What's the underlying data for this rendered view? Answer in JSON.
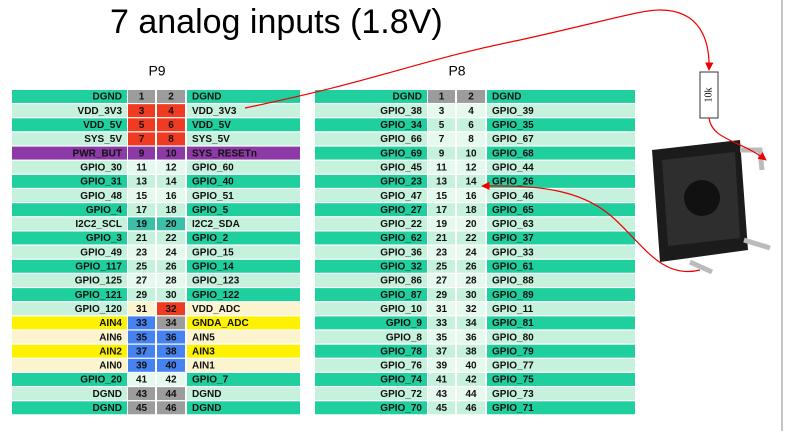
{
  "title": "7 analog inputs (1.8V)",
  "resistor": "10k",
  "p9": {
    "name": "P9",
    "rows": [
      {
        "left": "DGND",
        "pin_left": 1,
        "pin_right": 2,
        "right": "DGND",
        "colors": [
          "#20cf9e",
          "#9c9c9c",
          "#9c9c9c",
          "#20cf9e"
        ]
      },
      {
        "left": "VDD_3V3",
        "pin_left": 3,
        "pin_right": 4,
        "right": "VDD_3V3",
        "colors": [
          "#c6f1dc",
          "#ee3b22",
          "#ee3b22",
          "#c6f1dc"
        ]
      },
      {
        "left": "VDD_5V",
        "pin_left": 5,
        "pin_right": 6,
        "right": "VDD_5V",
        "colors": [
          "#20cf9e",
          "#ee3b22",
          "#ee3b22",
          "#20cf9e"
        ]
      },
      {
        "left": "SYS_5V",
        "pin_left": 7,
        "pin_right": 8,
        "right": "SYS_5V",
        "colors": [
          "#c6f1dc",
          "#ee3b22",
          "#ee3b22",
          "#c6f1dc"
        ]
      },
      {
        "left": "PWR_BUT",
        "pin_left": 9,
        "pin_right": 10,
        "right": "SYS_RESETn",
        "colors": [
          "#8b3aa6",
          "#8b3aa6",
          "#8b3aa6",
          "#8b3aa6"
        ]
      },
      {
        "left": "GPIO_30",
        "pin_left": 11,
        "pin_right": 12,
        "right": "GPIO_60",
        "colors": [
          "#c6f1dc",
          "#e6f9ef",
          "#e6f9ef",
          "#c6f1dc"
        ]
      },
      {
        "left": "GPIO_31",
        "pin_left": 13,
        "pin_right": 14,
        "right": "GPIO_40",
        "colors": [
          "#20cf9e",
          "#c6f1dc",
          "#c6f1dc",
          "#20cf9e"
        ]
      },
      {
        "left": "GPIO_48",
        "pin_left": 15,
        "pin_right": 16,
        "right": "GPIO_51",
        "colors": [
          "#c6f1dc",
          "#e6f9ef",
          "#e6f9ef",
          "#c6f1dc"
        ]
      },
      {
        "left": "GPIO_4",
        "pin_left": 17,
        "pin_right": 18,
        "right": "GPIO_5",
        "colors": [
          "#20cf9e",
          "#c6f1dc",
          "#c6f1dc",
          "#20cf9e"
        ]
      },
      {
        "left": "I2C2_SCL",
        "pin_left": 19,
        "pin_right": 20,
        "right": "I2C2_SDA",
        "colors": [
          "#c6f1dc",
          "#3cbfa8",
          "#3cbfa8",
          "#c6f1dc"
        ]
      },
      {
        "left": "GPIO_3",
        "pin_left": 21,
        "pin_right": 22,
        "right": "GPIO_2",
        "colors": [
          "#20cf9e",
          "#c6f1dc",
          "#c6f1dc",
          "#20cf9e"
        ]
      },
      {
        "left": "GPIO_49",
        "pin_left": 23,
        "pin_right": 24,
        "right": "GPIO_15",
        "colors": [
          "#c6f1dc",
          "#e6f9ef",
          "#e6f9ef",
          "#c6f1dc"
        ]
      },
      {
        "left": "GPIO_117",
        "pin_left": 25,
        "pin_right": 26,
        "right": "GPIO_14",
        "colors": [
          "#20cf9e",
          "#c6f1dc",
          "#c6f1dc",
          "#20cf9e"
        ]
      },
      {
        "left": "GPIO_125",
        "pin_left": 27,
        "pin_right": 28,
        "right": "GPIO_123",
        "colors": [
          "#c6f1dc",
          "#e6f9ef",
          "#e6f9ef",
          "#c6f1dc"
        ]
      },
      {
        "left": "GPIO_121",
        "pin_left": 29,
        "pin_right": 30,
        "right": "GPIO_122",
        "colors": [
          "#20cf9e",
          "#c6f1dc",
          "#c6f1dc",
          "#20cf9e"
        ]
      },
      {
        "left": "GPIO_120",
        "pin_left": 31,
        "pin_right": 32,
        "right": "VDD_ADC",
        "colors": [
          "#c6f1dc",
          "#fbf4cf",
          "#ee3b22",
          "#fbf4cf"
        ]
      },
      {
        "left": "AIN4",
        "pin_left": 33,
        "pin_right": 34,
        "right": "GNDA_ADC",
        "colors": [
          "#fff200",
          "#4682f0",
          "#9c9c9c",
          "#fff200"
        ]
      },
      {
        "left": "AIN6",
        "pin_left": 35,
        "pin_right": 36,
        "right": "AIN5",
        "colors": [
          "#fbf4cf",
          "#4682f0",
          "#4682f0",
          "#fbf4cf"
        ]
      },
      {
        "left": "AIN2",
        "pin_left": 37,
        "pin_right": 38,
        "right": "AIN3",
        "colors": [
          "#fff200",
          "#4682f0",
          "#4682f0",
          "#fff200"
        ]
      },
      {
        "left": "AIN0",
        "pin_left": 39,
        "pin_right": 40,
        "right": "AIN1",
        "colors": [
          "#fbf4cf",
          "#4682f0",
          "#4682f0",
          "#fbf4cf"
        ]
      },
      {
        "left": "GPIO_20",
        "pin_left": 41,
        "pin_right": 42,
        "right": "GPIO_7",
        "colors": [
          "#20cf9e",
          "#e6f9ef",
          "#e6f9ef",
          "#20cf9e"
        ]
      },
      {
        "left": "DGND",
        "pin_left": 43,
        "pin_right": 44,
        "right": "DGND",
        "colors": [
          "#c6f1dc",
          "#9c9c9c",
          "#9c9c9c",
          "#c6f1dc"
        ]
      },
      {
        "left": "DGND",
        "pin_left": 45,
        "pin_right": 46,
        "right": "DGND",
        "colors": [
          "#20cf9e",
          "#9c9c9c",
          "#9c9c9c",
          "#20cf9e"
        ]
      }
    ]
  },
  "p8": {
    "name": "P8",
    "rows": [
      {
        "left": "DGND",
        "pin_left": 1,
        "pin_right": 2,
        "right": "DGND",
        "colors": [
          "#20cf9e",
          "#9c9c9c",
          "#9c9c9c",
          "#20cf9e"
        ]
      },
      {
        "left": "GPIO_38",
        "pin_left": 3,
        "pin_right": 4,
        "right": "GPIO_39",
        "colors": [
          "#c6f1dc",
          "#e6f9ef",
          "#e6f9ef",
          "#c6f1dc"
        ]
      },
      {
        "left": "GPIO_34",
        "pin_left": 5,
        "pin_right": 6,
        "right": "GPIO_35",
        "colors": [
          "#20cf9e",
          "#c6f1dc",
          "#c6f1dc",
          "#20cf9e"
        ]
      },
      {
        "left": "GPIO_66",
        "pin_left": 7,
        "pin_right": 8,
        "right": "GPIO_67",
        "colors": [
          "#c6f1dc",
          "#e6f9ef",
          "#e6f9ef",
          "#c6f1dc"
        ]
      },
      {
        "left": "GPIO_69",
        "pin_left": 9,
        "pin_right": 10,
        "right": "GPIO_68",
        "colors": [
          "#20cf9e",
          "#c6f1dc",
          "#c6f1dc",
          "#20cf9e"
        ]
      },
      {
        "left": "GPIO_45",
        "pin_left": 11,
        "pin_right": 12,
        "right": "GPIO_44",
        "colors": [
          "#c6f1dc",
          "#e6f9ef",
          "#e6f9ef",
          "#c6f1dc"
        ]
      },
      {
        "left": "GPIO_23",
        "pin_left": 13,
        "pin_right": 14,
        "right": "GPIO_26",
        "colors": [
          "#20cf9e",
          "#c6f1dc",
          "#c6f1dc",
          "#20cf9e"
        ]
      },
      {
        "left": "GPIO_47",
        "pin_left": 15,
        "pin_right": 16,
        "right": "GPIO_46",
        "colors": [
          "#c6f1dc",
          "#e6f9ef",
          "#e6f9ef",
          "#c6f1dc"
        ]
      },
      {
        "left": "GPIO_27",
        "pin_left": 17,
        "pin_right": 18,
        "right": "GPIO_65",
        "colors": [
          "#20cf9e",
          "#c6f1dc",
          "#c6f1dc",
          "#20cf9e"
        ]
      },
      {
        "left": "GPIO_22",
        "pin_left": 19,
        "pin_right": 20,
        "right": "GPIO_63",
        "colors": [
          "#c6f1dc",
          "#e6f9ef",
          "#e6f9ef",
          "#c6f1dc"
        ]
      },
      {
        "left": "GPIO_62",
        "pin_left": 21,
        "pin_right": 22,
        "right": "GPIO_37",
        "colors": [
          "#20cf9e",
          "#c6f1dc",
          "#c6f1dc",
          "#20cf9e"
        ]
      },
      {
        "left": "GPIO_36",
        "pin_left": 23,
        "pin_right": 24,
        "right": "GPIO_33",
        "colors": [
          "#c6f1dc",
          "#e6f9ef",
          "#e6f9ef",
          "#c6f1dc"
        ]
      },
      {
        "left": "GPIO_32",
        "pin_left": 25,
        "pin_right": 26,
        "right": "GPIO_61",
        "colors": [
          "#20cf9e",
          "#c6f1dc",
          "#c6f1dc",
          "#20cf9e"
        ]
      },
      {
        "left": "GPIO_86",
        "pin_left": 27,
        "pin_right": 28,
        "right": "GPIO_88",
        "colors": [
          "#c6f1dc",
          "#e6f9ef",
          "#e6f9ef",
          "#c6f1dc"
        ]
      },
      {
        "left": "GPIO_87",
        "pin_left": 29,
        "pin_right": 30,
        "right": "GPIO_89",
        "colors": [
          "#20cf9e",
          "#c6f1dc",
          "#c6f1dc",
          "#20cf9e"
        ]
      },
      {
        "left": "GPIO_10",
        "pin_left": 31,
        "pin_right": 32,
        "right": "GPIO_11",
        "colors": [
          "#c6f1dc",
          "#e6f9ef",
          "#e6f9ef",
          "#c6f1dc"
        ]
      },
      {
        "left": "GPIO_9",
        "pin_left": 33,
        "pin_right": 34,
        "right": "GPIO_81",
        "colors": [
          "#20cf9e",
          "#c6f1dc",
          "#c6f1dc",
          "#20cf9e"
        ]
      },
      {
        "left": "GPIO_8",
        "pin_left": 35,
        "pin_right": 36,
        "right": "GPIO_80",
        "colors": [
          "#c6f1dc",
          "#e6f9ef",
          "#e6f9ef",
          "#c6f1dc"
        ]
      },
      {
        "left": "GPIO_78",
        "pin_left": 37,
        "pin_right": 38,
        "right": "GPIO_79",
        "colors": [
          "#20cf9e",
          "#c6f1dc",
          "#c6f1dc",
          "#20cf9e"
        ]
      },
      {
        "left": "GPIO_76",
        "pin_left": 39,
        "pin_right": 40,
        "right": "GPIO_77",
        "colors": [
          "#c6f1dc",
          "#e6f9ef",
          "#e6f9ef",
          "#c6f1dc"
        ]
      },
      {
        "left": "GPIO_74",
        "pin_left": 41,
        "pin_right": 42,
        "right": "GPIO_75",
        "colors": [
          "#20cf9e",
          "#c6f1dc",
          "#c6f1dc",
          "#20cf9e"
        ]
      },
      {
        "left": "GPIO_72",
        "pin_left": 43,
        "pin_right": 44,
        "right": "GPIO_73",
        "colors": [
          "#c6f1dc",
          "#e6f9ef",
          "#e6f9ef",
          "#c6f1dc"
        ]
      },
      {
        "left": "GPIO_70",
        "pin_left": 45,
        "pin_right": 46,
        "right": "GPIO_71",
        "colors": [
          "#20cf9e",
          "#c6f1dc",
          "#c6f1dc",
          "#20cf9e"
        ]
      }
    ]
  }
}
